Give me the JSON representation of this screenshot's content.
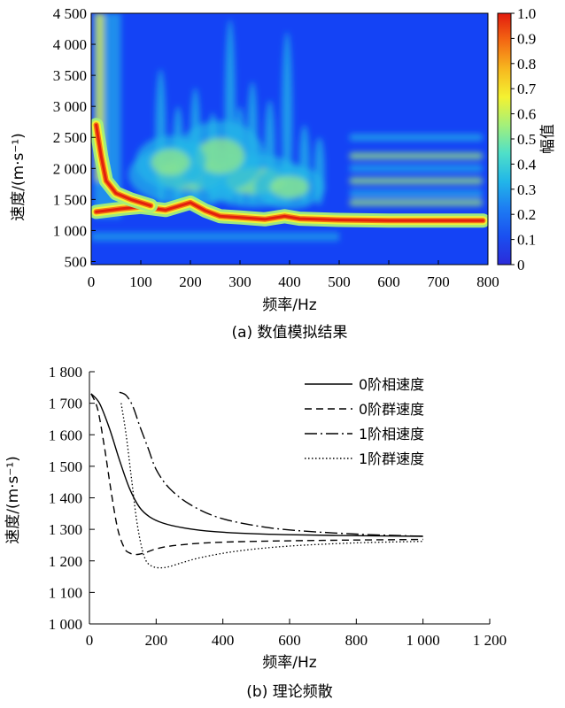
{
  "chart_data": [
    {
      "type": "heatmap",
      "caption": "(a)  数值模拟结果",
      "xlabel": "频率/Hz",
      "ylabel": "速度/(m·s⁻¹)",
      "colorbar_label": "幅值",
      "xlim": [
        0,
        800
      ],
      "ylim": [
        450,
        4500
      ],
      "x_ticks": [
        0,
        100,
        200,
        300,
        400,
        500,
        600,
        700,
        800
      ],
      "x_tick_labels": [
        "0",
        "100",
        "200",
        "300",
        "400",
        "500",
        "600",
        "700",
        "800"
      ],
      "y_ticks": [
        500,
        1000,
        1500,
        2000,
        2500,
        3000,
        3500,
        4000,
        4500
      ],
      "y_tick_labels": [
        "500",
        "1 000",
        "1 500",
        "2 000",
        "2 500",
        "3 000",
        "3 500",
        "4 000",
        "4 500"
      ],
      "colorbar_ticks": [
        0,
        0.1,
        0.2,
        0.3,
        0.4,
        0.5,
        0.6,
        0.7,
        0.8,
        0.9,
        1.0
      ],
      "colorbar_tick_labels": [
        "0",
        "0.1",
        "0.2",
        "0.3",
        "0.4",
        "0.5",
        "0.6",
        "0.7",
        "0.8",
        "0.9",
        "1.0"
      ],
      "colormap": [
        "#2b2bd9",
        "#1a4ff0",
        "#1d7cf2",
        "#22b7e8",
        "#4fe0c8",
        "#a4f07a",
        "#f4f231",
        "#f7b81f",
        "#f46a13",
        "#e21b0e"
      ],
      "background_color": "#1443f5",
      "ridges": [
        {
          "name": "0阶",
          "points": [
            [
              10,
              1300
            ],
            [
              30,
              1320
            ],
            [
              60,
              1350
            ],
            [
              100,
              1380
            ],
            [
              150,
              1330
            ],
            [
              200,
              1450
            ],
            [
              230,
              1320
            ],
            [
              260,
              1230
            ],
            [
              300,
              1210
            ],
            [
              350,
              1180
            ],
            [
              390,
              1230
            ],
            [
              420,
              1190
            ],
            [
              500,
              1170
            ],
            [
              600,
              1160
            ],
            [
              700,
              1160
            ],
            [
              790,
              1160
            ]
          ]
        },
        {
          "name": "1阶",
          "points": [
            [
              10,
              2700
            ],
            [
              20,
              2200
            ],
            [
              30,
              1800
            ],
            [
              50,
              1600
            ],
            [
              80,
              1500
            ],
            [
              120,
              1400
            ]
          ]
        }
      ]
    },
    {
      "type": "line",
      "caption": "(b) 理论频散",
      "xlabel": "频率/Hz",
      "ylabel": "速度/(m·s⁻¹)",
      "xlim": [
        0,
        1200
      ],
      "ylim": [
        1000,
        1800
      ],
      "x_ticks": [
        0,
        200,
        400,
        600,
        800,
        1000,
        1200
      ],
      "x_tick_labels": [
        "0",
        "200",
        "400",
        "600",
        "800",
        "1 000",
        "1 200"
      ],
      "y_ticks": [
        1000,
        1100,
        1200,
        1300,
        1400,
        1500,
        1600,
        1700,
        1800
      ],
      "y_tick_labels": [
        "1 000",
        "1 100",
        "1 200",
        "1 300",
        "1 400",
        "1 500",
        "1 600",
        "1 700",
        "1 800"
      ],
      "legend_position": "top-right",
      "series": [
        {
          "name": "0阶相速度",
          "style": "solid",
          "x": [
            5,
            30,
            60,
            90,
            120,
            150,
            180,
            220,
            280,
            350,
            450,
            600,
            800,
            1000
          ],
          "y": [
            1730,
            1700,
            1620,
            1520,
            1430,
            1370,
            1340,
            1320,
            1305,
            1295,
            1288,
            1283,
            1280,
            1278
          ]
        },
        {
          "name": "0阶群速度",
          "style": "dashed",
          "x": [
            5,
            25,
            45,
            65,
            85,
            105,
            120,
            140,
            165,
            200,
            250,
            350,
            500,
            700,
            1000
          ],
          "y": [
            1730,
            1680,
            1560,
            1420,
            1300,
            1240,
            1225,
            1220,
            1225,
            1238,
            1248,
            1257,
            1262,
            1265,
            1268
          ]
        },
        {
          "name": "1阶相速度",
          "style": "dashdot",
          "x": [
            90,
            110,
            130,
            150,
            175,
            200,
            240,
            300,
            380,
            480,
            600,
            800,
            1000
          ],
          "y": [
            1735,
            1725,
            1690,
            1630,
            1560,
            1490,
            1430,
            1380,
            1340,
            1315,
            1298,
            1285,
            1278
          ]
        },
        {
          "name": "1阶群速度",
          "style": "dotted",
          "x": [
            95,
            110,
            125,
            140,
            155,
            170,
            190,
            215,
            240,
            280,
            340,
            450,
            600,
            800,
            1000
          ],
          "y": [
            1700,
            1600,
            1470,
            1340,
            1250,
            1200,
            1182,
            1178,
            1182,
            1195,
            1212,
            1232,
            1247,
            1257,
            1262
          ]
        }
      ]
    }
  ]
}
